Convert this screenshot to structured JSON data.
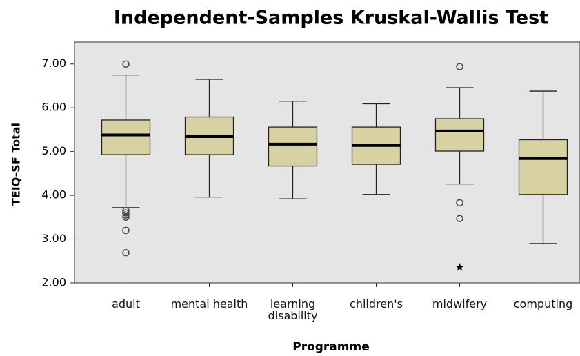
{
  "chart_data": {
    "type": "box",
    "title": "Independent-Samples Kruskal-Wallis Test",
    "x_label": "Programme",
    "y_label": "TEIQ-SF Total",
    "categories": [
      "adult",
      "mental health",
      "learning disability",
      "children's",
      "midwifery",
      "computing"
    ],
    "color": "#d8d2a2",
    "boxes": [
      {
        "min": 3.72,
        "q1": 4.93,
        "median": 5.38,
        "q3": 5.72,
        "max": 6.75,
        "outliers": [
          7.0,
          3.65,
          3.6,
          3.55,
          3.5,
          3.2,
          2.69
        ],
        "extremes": []
      },
      {
        "min": 3.96,
        "q1": 4.93,
        "median": 5.34,
        "q3": 5.79,
        "max": 6.65,
        "outliers": [],
        "extremes": []
      },
      {
        "min": 3.92,
        "q1": 4.67,
        "median": 5.17,
        "q3": 5.56,
        "max": 6.15,
        "outliers": [],
        "extremes": []
      },
      {
        "min": 4.02,
        "q1": 4.71,
        "median": 5.14,
        "q3": 5.56,
        "max": 6.09,
        "outliers": [],
        "extremes": []
      },
      {
        "min": 4.26,
        "q1": 5.01,
        "median": 5.47,
        "q3": 5.75,
        "max": 6.46,
        "outliers": [
          6.94,
          3.83,
          3.47
        ],
        "extremes": [
          2.36
        ]
      },
      {
        "min": 2.9,
        "q1": 4.02,
        "median": 4.84,
        "q3": 5.27,
        "max": 6.38,
        "outliers": [],
        "extremes": []
      }
    ],
    "ylim": [
      2,
      7.5
    ],
    "yticks": [
      {
        "value": 2,
        "label": "2.00"
      },
      {
        "value": 3,
        "label": "3.00"
      },
      {
        "value": 4,
        "label": "4.00"
      },
      {
        "value": 5,
        "label": "5.00"
      },
      {
        "value": 6,
        "label": "6.00"
      },
      {
        "value": 7,
        "label": "7.00"
      }
    ]
  }
}
